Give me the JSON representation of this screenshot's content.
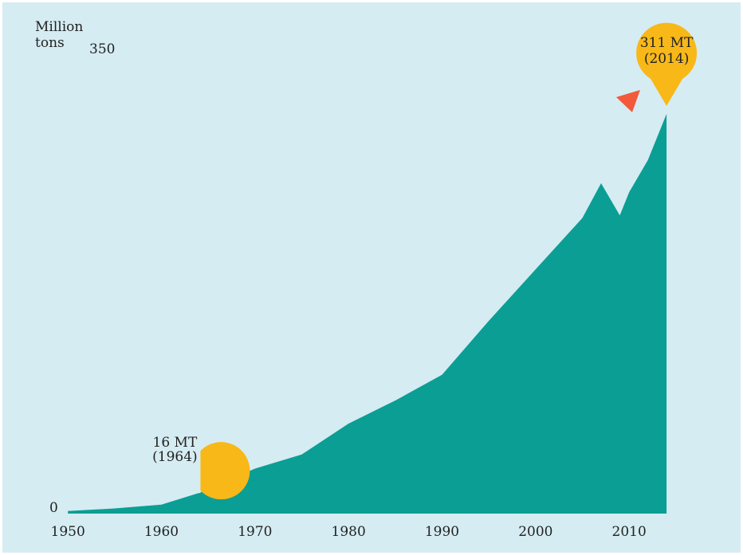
{
  "chart_data": {
    "type": "area",
    "y_label": "Million tons",
    "x": [
      1950,
      1955,
      1960,
      1964,
      1970,
      1975,
      1980,
      1985,
      1990,
      1995,
      2000,
      2005,
      2007,
      2009,
      2010,
      2012,
      2014
    ],
    "values": [
      2,
      4,
      7,
      16,
      35,
      46,
      70,
      88,
      108,
      150,
      190,
      230,
      257,
      232,
      250,
      275,
      311
    ],
    "color": "#0b9e94",
    "xlim": [
      1943,
      2022
    ],
    "xticks": [
      1950,
      1960,
      1970,
      1980,
      1990,
      2000,
      2010
    ],
    "ylim": [
      0,
      350
    ],
    "yticks": [
      0,
      350
    ],
    "annotations": [
      {
        "label": "16 MT",
        "sublabel": "(1964)",
        "x": 1964,
        "y": 16
      },
      {
        "label": "311 MT",
        "sublabel": "(2014)",
        "x": 2014,
        "y": 311
      }
    ],
    "marker_color": "#f8b818"
  }
}
